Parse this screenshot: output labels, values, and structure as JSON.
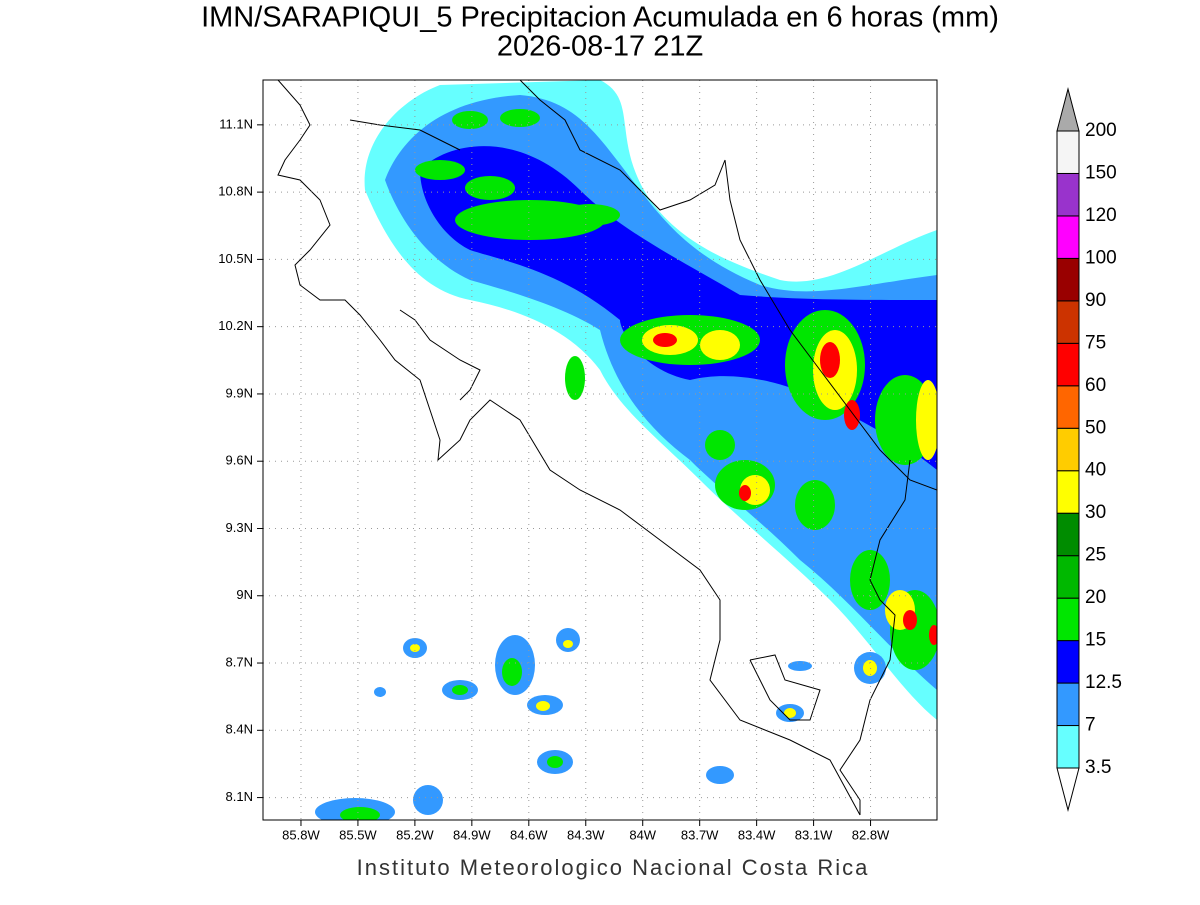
{
  "title": "IMN/SARAPIQUI_5 Precipitacion Acumulada en 6 horas (mm)",
  "subtitle": "2026-08-17 21Z",
  "footer": "Instituto Meteorologico Nacional Costa Rica",
  "map": {
    "xlim": [
      -86.0,
      -82.45
    ],
    "ylim": [
      8.0,
      11.3
    ],
    "grid": true,
    "xticks": [
      {
        "value": -85.8,
        "label": "85.8W"
      },
      {
        "value": -85.5,
        "label": "85.5W"
      },
      {
        "value": -85.2,
        "label": "85.2W"
      },
      {
        "value": -84.9,
        "label": "84.9W"
      },
      {
        "value": -84.6,
        "label": "84.6W"
      },
      {
        "value": -84.3,
        "label": "84.3W"
      },
      {
        "value": -84.0,
        "label": "84W"
      },
      {
        "value": -83.7,
        "label": "83.7W"
      },
      {
        "value": -83.4,
        "label": "83.4W"
      },
      {
        "value": -83.1,
        "label": "83.1W"
      },
      {
        "value": -82.8,
        "label": "82.8W"
      }
    ],
    "yticks": [
      {
        "value": 8.1,
        "label": "8.1N"
      },
      {
        "value": 8.4,
        "label": "8.4N"
      },
      {
        "value": 8.7,
        "label": "8.7N"
      },
      {
        "value": 9.0,
        "label": "9N"
      },
      {
        "value": 9.3,
        "label": "9.3N"
      },
      {
        "value": 9.6,
        "label": "9.6N"
      },
      {
        "value": 9.9,
        "label": "9.9N"
      },
      {
        "value": 10.2,
        "label": "10.2N"
      },
      {
        "value": 10.5,
        "label": "10.5N"
      },
      {
        "value": 10.8,
        "label": "10.8N"
      },
      {
        "value": 11.1,
        "label": "11.1N"
      }
    ]
  },
  "colorbar": {
    "levels": [
      3.5,
      7,
      12.5,
      15,
      20,
      25,
      30,
      40,
      50,
      60,
      75,
      90,
      100,
      120,
      150,
      200
    ],
    "colors": [
      "#66ffff",
      "#3399ff",
      "#0000ff",
      "#00e600",
      "#00b800",
      "#008c00",
      "#ffff00",
      "#ffcc00",
      "#ff6600",
      "#ff0000",
      "#cc3300",
      "#990000",
      "#ff00ff",
      "#9933cc",
      "#f5f5f5"
    ],
    "under_color": "#ffffff",
    "over_color": "#aaaaaa"
  }
}
